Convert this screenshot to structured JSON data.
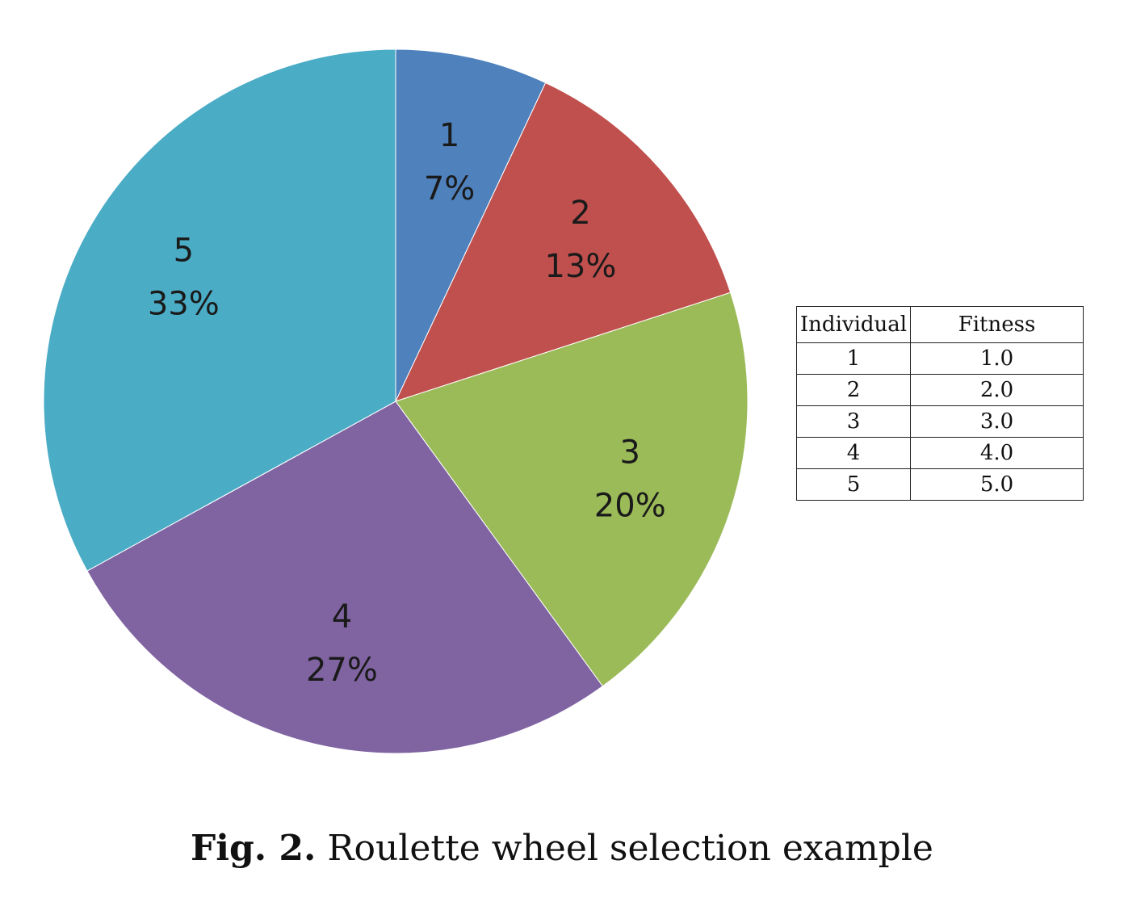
{
  "chart_data": {
    "type": "pie",
    "categories": [
      "1",
      "2",
      "3",
      "4",
      "5"
    ],
    "values": [
      7,
      13,
      20,
      27,
      33
    ],
    "data_labels": [
      "1\n7%",
      "2\n13%",
      "3\n20%",
      "4\n27%",
      "5\n33%"
    ],
    "colors": [
      "#4f81bd",
      "#c0504d",
      "#9bbb59",
      "#8064a2",
      "#4bacc6"
    ],
    "start_angle": "12 o'clock",
    "direction": "clockwise"
  },
  "table": {
    "headers": [
      "Individual",
      "Fitness"
    ],
    "rows": [
      [
        "1",
        "1.0"
      ],
      [
        "2",
        "2.0"
      ],
      [
        "3",
        "3.0"
      ],
      [
        "4",
        "4.0"
      ],
      [
        "5",
        "5.0"
      ]
    ]
  },
  "caption": {
    "label": "Fig. 2.",
    "text": "Roulette wheel selection example"
  }
}
